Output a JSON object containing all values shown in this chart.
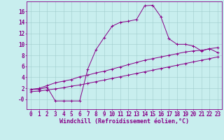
{
  "xlabel": "Windchill (Refroidissement éolien,°C)",
  "ylabel": "",
  "bg_color": "#c8eeee",
  "line_color": "#880088",
  "grid_color": "#a0cccc",
  "axis_color": "#880088",
  "tick_color": "#880088",
  "xlim": [
    -0.5,
    23.5
  ],
  "ylim": [
    -1.8,
    17.8
  ],
  "xticks": [
    0,
    1,
    2,
    3,
    4,
    5,
    6,
    7,
    8,
    9,
    10,
    11,
    12,
    13,
    14,
    15,
    16,
    17,
    18,
    19,
    20,
    21,
    22,
    23
  ],
  "yticks": [
    0,
    2,
    4,
    6,
    8,
    10,
    12,
    14,
    16
  ],
  "ytick_labels": [
    "-0",
    "2",
    "4",
    "6",
    "8",
    "10",
    "12",
    "14",
    "16"
  ],
  "line1_x": [
    0,
    1,
    2,
    3,
    4,
    5,
    6,
    7,
    8,
    9,
    10,
    11,
    12,
    13,
    14,
    15,
    16,
    17,
    18,
    19,
    20,
    21,
    22,
    23
  ],
  "line1_y": [
    1.8,
    1.8,
    2.2,
    -0.3,
    -0.3,
    -0.3,
    -0.3,
    5.5,
    9.0,
    11.2,
    13.3,
    14.0,
    14.2,
    14.5,
    17.0,
    17.1,
    15.0,
    11.0,
    10.0,
    10.0,
    9.7,
    8.8,
    9.2,
    8.5
  ],
  "line2_x": [
    0,
    1,
    2,
    3,
    4,
    5,
    6,
    7,
    8,
    9,
    10,
    11,
    12,
    13,
    14,
    15,
    16,
    17,
    18,
    19,
    20,
    21,
    22,
    23
  ],
  "line2_y": [
    1.8,
    2.0,
    2.5,
    3.0,
    3.3,
    3.6,
    4.1,
    4.4,
    4.8,
    5.1,
    5.5,
    5.9,
    6.3,
    6.7,
    7.1,
    7.4,
    7.7,
    8.0,
    8.3,
    8.6,
    8.8,
    8.9,
    9.2,
    9.4
  ],
  "line3_x": [
    0,
    1,
    2,
    3,
    4,
    5,
    6,
    7,
    8,
    9,
    10,
    11,
    12,
    13,
    14,
    15,
    16,
    17,
    18,
    19,
    20,
    21,
    22,
    23
  ],
  "line3_y": [
    1.4,
    1.5,
    1.7,
    1.9,
    2.1,
    2.4,
    2.6,
    2.9,
    3.2,
    3.5,
    3.8,
    4.1,
    4.4,
    4.7,
    5.0,
    5.3,
    5.6,
    5.9,
    6.2,
    6.5,
    6.8,
    7.1,
    7.4,
    7.7
  ],
  "marker": "+",
  "markersize": 3,
  "markeredgewidth": 0.7,
  "linewidth": 0.7,
  "fontsize_ticks": 5.5,
  "fontsize_xlabel": 6.0
}
